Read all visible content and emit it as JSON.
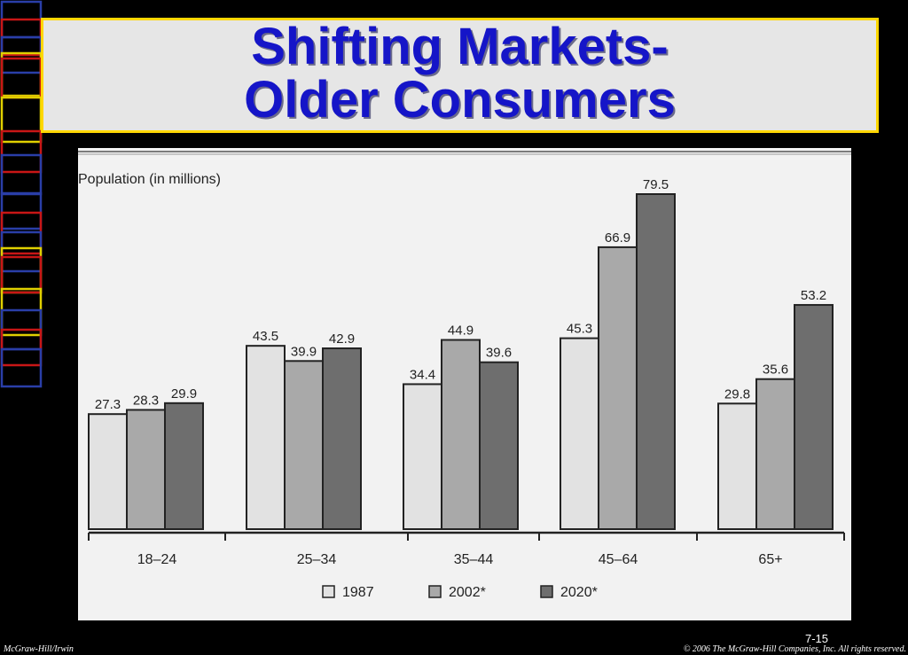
{
  "slide": {
    "title_line1": "Shifting Markets-",
    "title_line2": "Older Consumers",
    "page_number": "7-15",
    "footer_left": "McGraw-Hill/Irwin",
    "footer_right": "© 2006 The McGraw-Hill Companies, Inc. All rights reserved."
  },
  "chart_data": {
    "type": "bar",
    "ylabel": "Population (in millions)",
    "categories": [
      "18–24",
      "25–34",
      "35–44",
      "45–64",
      "65+"
    ],
    "series": [
      {
        "name": "1987",
        "values": [
          27.3,
          43.5,
          34.4,
          45.3,
          29.8
        ]
      },
      {
        "name": "2002*",
        "values": [
          28.3,
          39.9,
          44.9,
          66.9,
          35.6
        ]
      },
      {
        "name": "2020*",
        "values": [
          29.9,
          42.9,
          39.6,
          79.5,
          53.2
        ]
      }
    ],
    "ylim": [
      0,
      79.5
    ],
    "grid": false,
    "legend_position": "bottom",
    "colors": [
      "#e2e2e2",
      "#a9a9a9",
      "#6e6e6e"
    ],
    "bar_outline": "#222222"
  }
}
